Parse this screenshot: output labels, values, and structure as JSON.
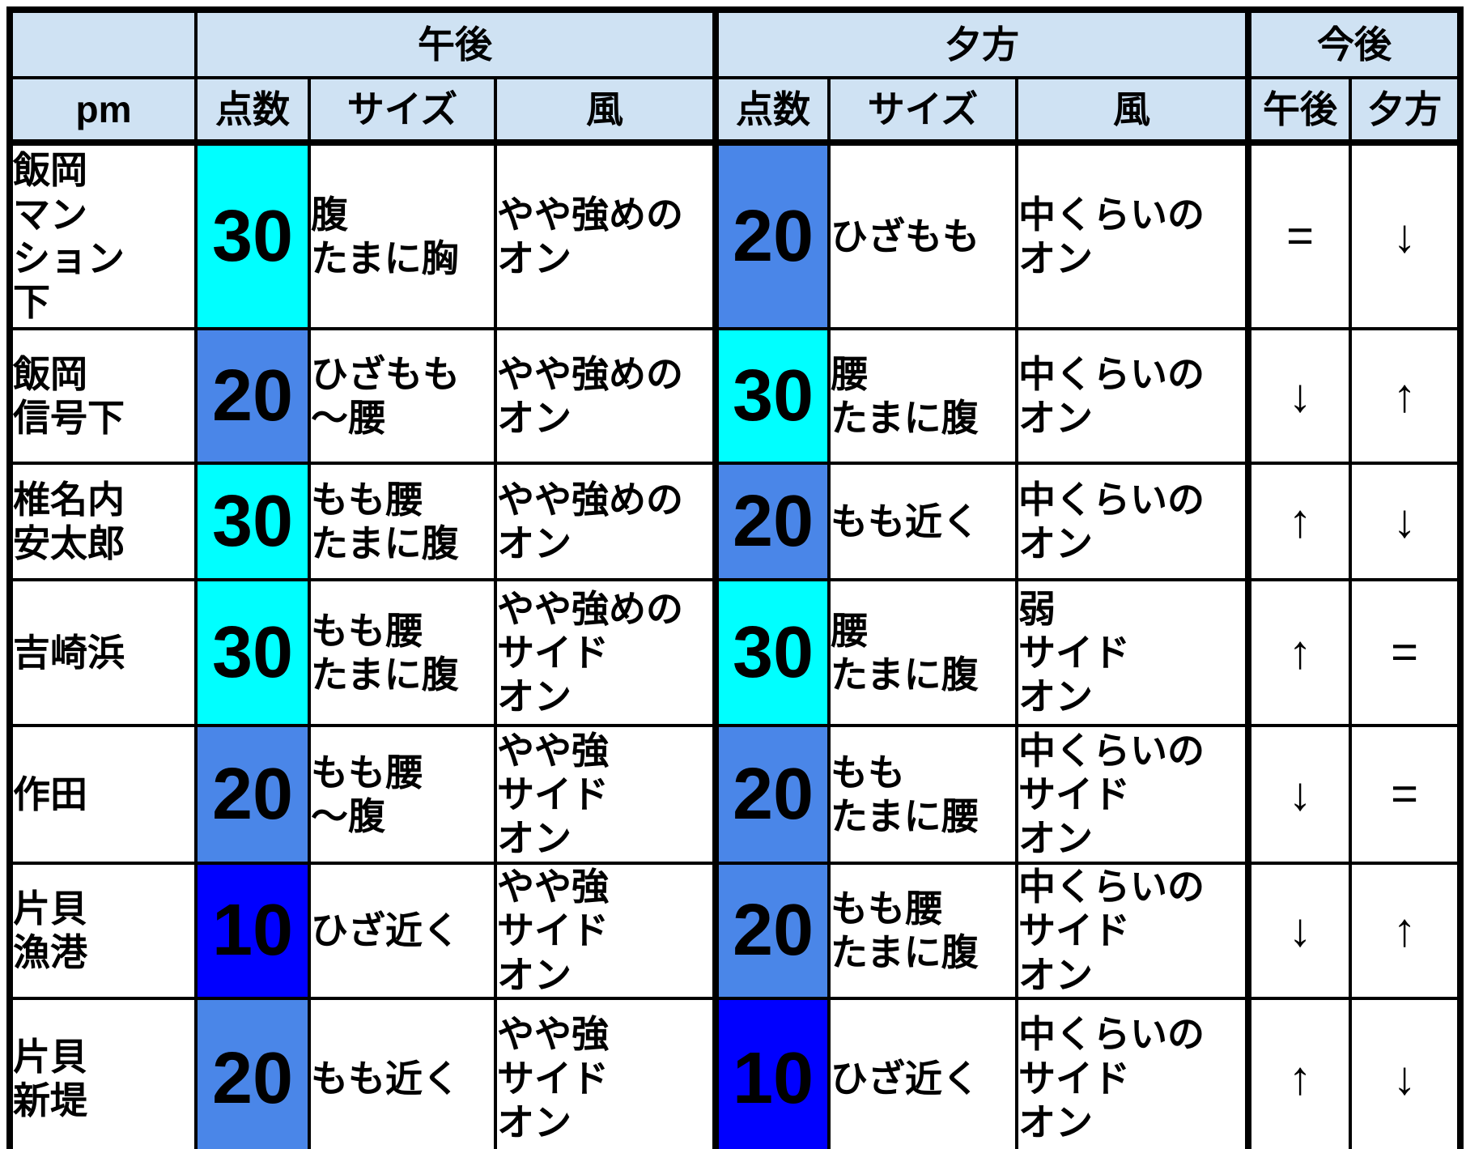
{
  "title": "surf-report-table",
  "colors": {
    "header_bg": "#cfe2f3",
    "score_30_bg": "#00ffff",
    "score_20_bg": "#4a86e8",
    "score_10_bg": "#0000ff",
    "border": "#000000",
    "cell_bg": "#ffffff"
  },
  "header": {
    "corner_label": "",
    "afternoon_label": "午後",
    "evening_label": "夕方",
    "outlook_label": "今後",
    "pm_label": "pm",
    "score_label": "点数",
    "size_label": "サイズ",
    "wind_label": "風",
    "outlook_pm_label": "午後",
    "outlook_evening_label": "夕方"
  },
  "rows": [
    {
      "location": "飯岡\nマン\nション\n下",
      "pm": {
        "score": "30",
        "bg": "#00ffff",
        "size": "腹\nたまに胸",
        "wind": "やや強めの\nオン"
      },
      "evening": {
        "score": "20",
        "bg": "#4a86e8",
        "size": "ひざもも",
        "wind": "中くらいの\nオン"
      },
      "outlook": {
        "pm": "=",
        "evening": "↓"
      }
    },
    {
      "location": "飯岡\n信号下",
      "pm": {
        "score": "20",
        "bg": "#4a86e8",
        "size": "ひざもも\n～腰",
        "wind": "やや強めの\nオン"
      },
      "evening": {
        "score": "30",
        "bg": "#00ffff",
        "size": "腰\nたまに腹",
        "wind": "中くらいの\nオン"
      },
      "outlook": {
        "pm": "↓",
        "evening": "↑"
      }
    },
    {
      "location": "椎名内\n安太郎",
      "pm": {
        "score": "30",
        "bg": "#00ffff",
        "size": "もも腰\nたまに腹",
        "wind": "やや強めの\nオン"
      },
      "evening": {
        "score": "20",
        "bg": "#4a86e8",
        "size": "もも近く",
        "wind": "中くらいの\nオン"
      },
      "outlook": {
        "pm": "↑",
        "evening": "↓"
      }
    },
    {
      "location": "吉崎浜",
      "pm": {
        "score": "30",
        "bg": "#00ffff",
        "size": "もも腰\nたまに腹",
        "wind": "やや強めの\nサイド\nオン"
      },
      "evening": {
        "score": "30",
        "bg": "#00ffff",
        "size": "腰\nたまに腹",
        "wind": "弱\nサイド\nオン"
      },
      "outlook": {
        "pm": "↑",
        "evening": "="
      }
    },
    {
      "location": "作田",
      "pm": {
        "score": "20",
        "bg": "#4a86e8",
        "size": "もも腰\n～腹",
        "wind": "やや強\nサイド\nオン"
      },
      "evening": {
        "score": "20",
        "bg": "#4a86e8",
        "size": "もも\nたまに腰",
        "wind": "中くらいの\nサイド\nオン"
      },
      "outlook": {
        "pm": "↓",
        "evening": "="
      }
    },
    {
      "location": "片貝\n漁港",
      "pm": {
        "score": "10",
        "bg": "#0000ff",
        "size": "ひざ近く",
        "wind": "やや強\nサイド\nオン"
      },
      "evening": {
        "score": "20",
        "bg": "#4a86e8",
        "size": "もも腰\nたまに腹",
        "wind": "中くらいの\nサイド\nオン"
      },
      "outlook": {
        "pm": "↓",
        "evening": "↑"
      }
    },
    {
      "location": "片貝\n新堤",
      "pm": {
        "score": "20",
        "bg": "#4a86e8",
        "size": "もも近く",
        "wind": "やや強\nサイド\nオン"
      },
      "evening": {
        "score": "10",
        "bg": "#0000ff",
        "size": "ひざ近く",
        "wind": "中くらいの\nサイド\nオン"
      },
      "outlook": {
        "pm": "↑",
        "evening": "↓"
      }
    }
  ],
  "chart_data": {
    "type": "table",
    "title": "サーフポイント別コンディション表（午後・夕方・今後）",
    "column_groups": [
      "午後",
      "夕方",
      "今後"
    ],
    "columns": [
      "pm",
      "点数",
      "サイズ",
      "風",
      "点数",
      "サイズ",
      "風",
      "午後",
      "夕方"
    ],
    "rows": [
      [
        "飯岡マンション下",
        30,
        "腹 たまに胸",
        "やや強めの オン",
        20,
        "ひざもも",
        "中くらいの オン",
        "=",
        "↓"
      ],
      [
        "飯岡信号下",
        20,
        "ひざもも ～腰",
        "やや強めの オン",
        30,
        "腰 たまに腹",
        "中くらいの オン",
        "↓",
        "↑"
      ],
      [
        "椎名内安太郎",
        30,
        "もも腰 たまに腹",
        "やや強めの オン",
        20,
        "もも近く",
        "中くらいの オン",
        "↑",
        "↓"
      ],
      [
        "吉崎浜",
        30,
        "もも腰 たまに腹",
        "やや強めの サイド オン",
        30,
        "腰 たまに腹",
        "弱 サイド オン",
        "↑",
        "="
      ],
      [
        "作田",
        20,
        "もも腰 ～腹",
        "やや強 サイド オン",
        20,
        "もも たまに腰",
        "中くらいの サイド オン",
        "↓",
        "="
      ],
      [
        "片貝漁港",
        10,
        "ひざ近く",
        "やや強 サイド オン",
        20,
        "もも腰 たまに腹",
        "中くらいの サイド オン",
        "↓",
        "↑"
      ],
      [
        "片貝新堤",
        20,
        "もも近く",
        "やや強 サイド オン",
        10,
        "ひざ近く",
        "中くらいの サイド オン",
        "↑",
        "↓"
      ]
    ],
    "legend": "点数セル背景色: 30=シアン(#00ffff), 20=コーンフラワーブルー(#4a86e8), 10=ブルー(#0000ff)"
  }
}
